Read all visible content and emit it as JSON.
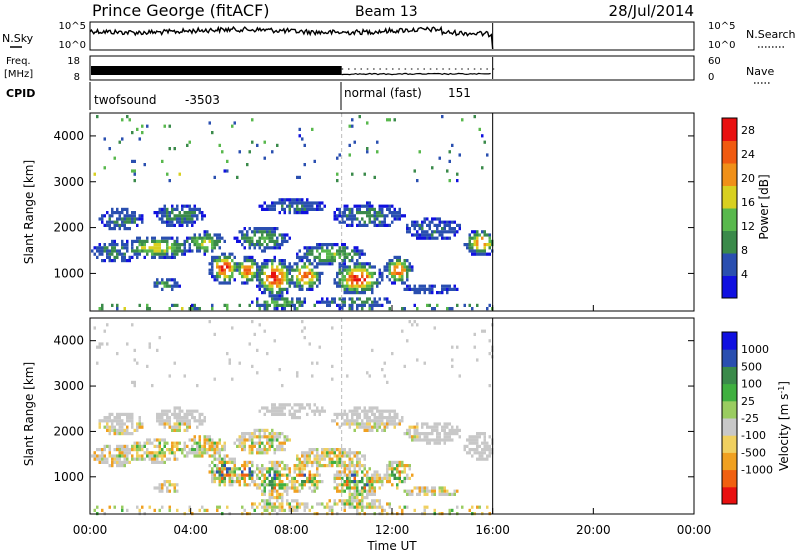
{
  "header": {
    "station": "Prince George (fitACF)",
    "beam": "Beam 13",
    "date": "28/Jul/2014"
  },
  "noise_panel": {
    "left_label": "N.Sky",
    "left_ticks": [
      "10^5",
      "10^0"
    ],
    "right_ticks": [
      "10^5",
      "10^0"
    ],
    "right_label": "N.Search"
  },
  "freq_panel": {
    "left_label_1": "Freq.",
    "left_label_2": "[MHz]",
    "left_ticks": [
      "18",
      "8"
    ],
    "right_ticks": [
      "60",
      "0"
    ],
    "right_label": "Nave"
  },
  "cpid_panel": {
    "label": "CPID",
    "modes": [
      {
        "name": "twofsound",
        "id": "-3503"
      },
      {
        "name": "normal (fast)",
        "id": "151"
      }
    ]
  },
  "time_axis": {
    "ticks": [
      "00:00",
      "04:00",
      "08:00",
      "12:00",
      "16:00",
      "20:00",
      "00:00"
    ],
    "label": "Time UT"
  },
  "colors": {
    "power": [
      "#1010e0",
      "#2a4fb0",
      "#3a8a4a",
      "#58b84c",
      "#d8d020",
      "#f09018",
      "#f05a10",
      "#e81010"
    ],
    "velocity": [
      "#e81010",
      "#f06010",
      "#f0a020",
      "#f0d060",
      "#c8c8c8",
      "#9acc60",
      "#40b040",
      "#3a8a4a",
      "#2a4fb0",
      "#1010e0"
    ]
  },
  "chart_data": [
    {
      "type": "heatmap",
      "panel": "power",
      "xlabel": "",
      "ylabel": "Slant Range [km]",
      "xlim": [
        0,
        24
      ],
      "ylim": [
        180,
        4500
      ],
      "yticks": [
        "1000",
        "2000",
        "3000",
        "4000"
      ],
      "colorbar": {
        "label": "Power [dB]",
        "ticks": [
          "4",
          "8",
          "12",
          "16",
          "20",
          "24",
          "28"
        ],
        "range": [
          0,
          30
        ]
      },
      "data_end_hour": 16,
      "mode_change_hour": 10,
      "grid": false
    },
    {
      "type": "heatmap",
      "panel": "velocity",
      "xlabel": "Time UT",
      "ylabel": "Slant Range [km]",
      "xlim": [
        0,
        24
      ],
      "ylim": [
        180,
        4500
      ],
      "yticks": [
        "1000",
        "2000",
        "3000",
        "4000"
      ],
      "colorbar": {
        "label": "Velocity [m s^-1]",
        "ticks": [
          "1000",
          "500",
          "100",
          "25",
          "-25",
          "-100",
          "-500",
          "-1000"
        ],
        "range": [
          -1000,
          1000
        ]
      },
      "data_end_hour": 16,
      "mode_change_hour": 10,
      "grid": false
    }
  ]
}
